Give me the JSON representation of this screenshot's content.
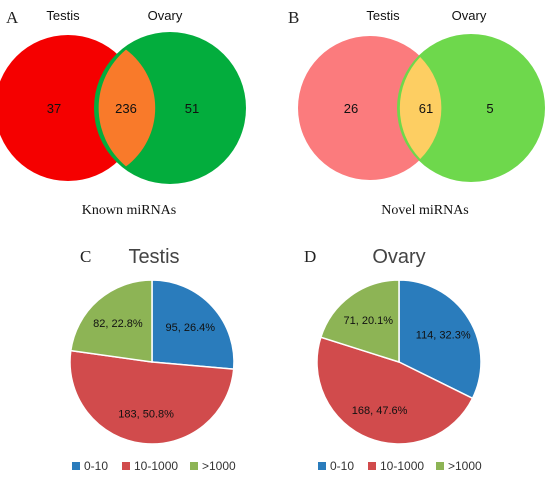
{
  "chart_data": [
    {
      "type": "venn",
      "panel": "A",
      "sets": [
        "Testis",
        "Ovary"
      ],
      "values": {
        "testis_only": "37",
        "both": "236",
        "ovary_only": "51"
      },
      "colors": {
        "testis": "#f50000",
        "overlap": "#f97a2a",
        "ovary": "#03ad3d"
      },
      "caption": "Known miRNAs"
    },
    {
      "type": "venn",
      "panel": "B",
      "sets": [
        "Testis",
        "Ovary"
      ],
      "values": {
        "testis_only": "26",
        "both": "61",
        "ovary_only": "5"
      },
      "colors": {
        "testis": "#fb7b7d",
        "overlap": "#fdce62",
        "ovary": "#6ed84c"
      },
      "caption": "Novel miRNAs"
    },
    {
      "type": "pie",
      "panel": "C",
      "title": "Testis",
      "slices": [
        {
          "category": "0-10",
          "count": 95,
          "percent": 26.4,
          "label": "95, 26.4%",
          "color": "#2a7cbc"
        },
        {
          "category": "10-1000",
          "count": 183,
          "percent": 50.8,
          "label": "183, 50.8%",
          "color": "#d14b4c"
        },
        {
          "category": ">1000",
          "count": 82,
          "percent": 22.8,
          "label": "82, 22.8%",
          "color": "#8db455"
        }
      ],
      "legend": [
        "0-10",
        "10-1000",
        ">1000"
      ],
      "legend_position": "bottom"
    },
    {
      "type": "pie",
      "panel": "D",
      "title": "Ovary",
      "slices": [
        {
          "category": "0-10",
          "count": 114,
          "percent": 32.3,
          "label": "114, 32.3%",
          "color": "#2a7cbc"
        },
        {
          "category": "10-1000",
          "count": 168,
          "percent": 47.6,
          "label": "168, 47.6%",
          "color": "#d14b4c"
        },
        {
          "category": ">1000",
          "count": 71,
          "percent": 20.1,
          "label": "71, 20.1%",
          "color": "#8db455"
        }
      ],
      "legend": [
        "0-10",
        "10-1000",
        ">1000"
      ],
      "legend_position": "bottom"
    }
  ]
}
